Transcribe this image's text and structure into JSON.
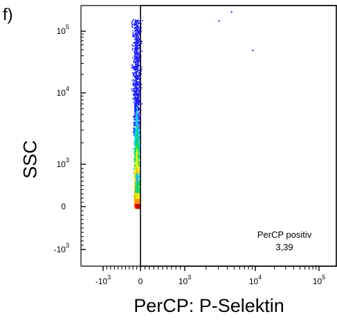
{
  "panel_label": "f)",
  "gate": {
    "name": "PerCP positiv",
    "value": "3,39"
  },
  "chart_data": {
    "type": "scatter",
    "title": "",
    "xlabel": "PerCP: P-Selektin",
    "ylabel": "SSC",
    "x_scale": "biexponential",
    "y_scale": "biexponential",
    "x_ticks": [
      {
        "value": -1000,
        "label": "-10",
        "exp": "3"
      },
      {
        "value": 0,
        "label": "0",
        "exp": ""
      },
      {
        "value": 1000,
        "label": "10",
        "exp": "3"
      },
      {
        "value": 10000,
        "label": "10",
        "exp": "4"
      },
      {
        "value": 100000,
        "label": "10",
        "exp": "5"
      }
    ],
    "y_ticks": [
      {
        "value": -1000,
        "label": "-10",
        "exp": "3"
      },
      {
        "value": 0,
        "label": "0",
        "exp": ""
      },
      {
        "value": 1000,
        "label": "10",
        "exp": "3"
      },
      {
        "value": 10000,
        "label": "10",
        "exp": "4"
      },
      {
        "value": 100000,
        "label": "10",
        "exp": "5"
      }
    ],
    "gate_threshold_x": 0,
    "grid": false,
    "color_map": [
      "#1a1aff",
      "#00c8ff",
      "#00e060",
      "#f0f000",
      "#ff9000",
      "#e00000"
    ],
    "sparse_points": [
      {
        "x": 3000,
        "y": 150000
      },
      {
        "x": 4500,
        "y": 210000
      },
      {
        "x": 9000,
        "y": 50000
      }
    ]
  }
}
